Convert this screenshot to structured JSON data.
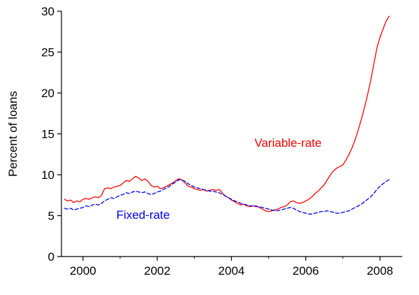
{
  "chart_data": {
    "type": "line",
    "title": "",
    "xlabel": "",
    "ylabel": "Percent of loans",
    "xlim": [
      1999.42,
      2008.6
    ],
    "ylim": [
      0,
      30
    ],
    "x_major_ticks": [
      2000,
      2002,
      2004,
      2006,
      2008
    ],
    "x_minor_ticks": [
      2001,
      2003,
      2005,
      2007
    ],
    "y_major_ticks": [
      0,
      5,
      10,
      15,
      20,
      25,
      30
    ],
    "grid": false,
    "legend_position": "inline-annotations",
    "axis_color": "#000000",
    "x": [
      1999.5,
      1999.583,
      1999.667,
      1999.75,
      1999.833,
      1999.917,
      2000.0,
      2000.083,
      2000.167,
      2000.25,
      2000.333,
      2000.417,
      2000.5,
      2000.583,
      2000.667,
      2000.75,
      2000.833,
      2000.917,
      2001.0,
      2001.083,
      2001.167,
      2001.25,
      2001.333,
      2001.417,
      2001.5,
      2001.583,
      2001.667,
      2001.75,
      2001.833,
      2001.917,
      2002.0,
      2002.083,
      2002.167,
      2002.25,
      2002.333,
      2002.417,
      2002.5,
      2002.583,
      2002.667,
      2002.75,
      2002.833,
      2002.917,
      2003.0,
      2003.083,
      2003.167,
      2003.25,
      2003.333,
      2003.417,
      2003.5,
      2003.583,
      2003.667,
      2003.75,
      2003.833,
      2003.917,
      2004.0,
      2004.083,
      2004.167,
      2004.25,
      2004.333,
      2004.417,
      2004.5,
      2004.583,
      2004.667,
      2004.75,
      2004.833,
      2004.917,
      2005.0,
      2005.083,
      2005.167,
      2005.25,
      2005.333,
      2005.417,
      2005.5,
      2005.583,
      2005.667,
      2005.75,
      2005.833,
      2005.917,
      2006.0,
      2006.083,
      2006.167,
      2006.25,
      2006.333,
      2006.417,
      2006.5,
      2006.583,
      2006.667,
      2006.75,
      2006.833,
      2006.917,
      2007.0,
      2007.083,
      2007.167,
      2007.25,
      2007.333,
      2007.417,
      2007.5,
      2007.583,
      2007.667,
      2007.75,
      2007.833,
      2007.917,
      2008.0,
      2008.083,
      2008.167,
      2008.25
    ],
    "series": [
      {
        "name": "Variable-rate",
        "color": "#ff0000",
        "style": "solid",
        "label_pos": [
          2004.62,
          13.4
        ],
        "values": [
          7.0,
          6.8,
          6.9,
          6.6,
          6.8,
          6.7,
          7.0,
          7.1,
          7.0,
          7.2,
          7.3,
          7.2,
          7.5,
          8.3,
          8.4,
          8.3,
          8.5,
          8.6,
          8.7,
          9.0,
          9.3,
          9.2,
          9.5,
          9.8,
          9.6,
          9.3,
          9.5,
          9.2,
          8.7,
          8.5,
          8.6,
          8.3,
          8.4,
          8.6,
          8.8,
          9.0,
          9.3,
          9.5,
          9.4,
          9.0,
          8.6,
          8.5,
          8.3,
          8.2,
          8.1,
          8.2,
          8.0,
          8.1,
          8.2,
          8.1,
          8.2,
          7.8,
          7.4,
          7.2,
          6.9,
          6.7,
          6.5,
          6.3,
          6.4,
          6.2,
          6.1,
          6.2,
          6.2,
          6.0,
          5.8,
          5.6,
          5.5,
          5.6,
          5.7,
          5.8,
          6.0,
          6.1,
          6.3,
          6.7,
          6.8,
          6.6,
          6.5,
          6.6,
          6.8,
          7.0,
          7.3,
          7.7,
          8.0,
          8.4,
          8.8,
          9.4,
          10.0,
          10.5,
          10.8,
          11.0,
          11.2,
          11.8,
          12.5,
          13.3,
          14.3,
          15.5,
          16.8,
          18.2,
          19.8,
          21.5,
          23.5,
          25.5,
          26.8,
          27.8,
          28.8,
          29.4
        ]
      },
      {
        "name": "Fixed-rate",
        "color": "#0000ee",
        "style": "dashed",
        "label_pos": [
          2000.9,
          4.6
        ],
        "values": [
          5.9,
          5.8,
          5.9,
          5.7,
          5.8,
          5.9,
          6.0,
          6.2,
          6.1,
          6.3,
          6.4,
          6.3,
          6.5,
          6.8,
          7.0,
          7.2,
          7.1,
          7.3,
          7.5,
          7.6,
          7.8,
          7.7,
          7.9,
          8.0,
          7.9,
          7.8,
          7.9,
          7.7,
          7.6,
          7.7,
          7.9,
          8.0,
          8.2,
          8.4,
          8.6,
          8.9,
          9.1,
          9.4,
          9.3,
          9.2,
          8.9,
          8.7,
          8.5,
          8.4,
          8.3,
          8.2,
          8.1,
          8.0,
          8.0,
          7.9,
          7.8,
          7.6,
          7.4,
          7.2,
          7.0,
          6.8,
          6.7,
          6.5,
          6.4,
          6.3,
          6.2,
          6.2,
          6.1,
          6.1,
          6.0,
          5.9,
          5.8,
          5.7,
          5.6,
          5.6,
          5.7,
          5.8,
          5.9,
          6.0,
          5.9,
          5.7,
          5.5,
          5.4,
          5.3,
          5.2,
          5.2,
          5.3,
          5.4,
          5.5,
          5.5,
          5.6,
          5.5,
          5.4,
          5.3,
          5.3,
          5.4,
          5.5,
          5.6,
          5.8,
          6.0,
          6.2,
          6.4,
          6.7,
          7.0,
          7.3,
          7.7,
          8.2,
          8.6,
          8.9,
          9.2,
          9.4
        ]
      }
    ]
  }
}
